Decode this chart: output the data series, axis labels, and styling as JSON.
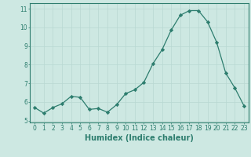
{
  "x": [
    0,
    1,
    2,
    3,
    4,
    5,
    6,
    7,
    8,
    9,
    10,
    11,
    12,
    13,
    14,
    15,
    16,
    17,
    18,
    19,
    20,
    21,
    22,
    23
  ],
  "y": [
    5.7,
    5.4,
    5.7,
    5.9,
    6.3,
    6.25,
    5.6,
    5.65,
    5.45,
    5.85,
    6.45,
    6.65,
    7.05,
    8.05,
    8.8,
    9.85,
    10.65,
    10.9,
    10.9,
    10.3,
    9.2,
    7.55,
    6.75,
    5.8
  ],
  "xlabel": "Humidex (Indice chaleur)",
  "xlim": [
    -0.5,
    23.5
  ],
  "ylim": [
    4.9,
    11.3
  ],
  "yticks": [
    5,
    6,
    7,
    8,
    9,
    10,
    11
  ],
  "xticks": [
    0,
    1,
    2,
    3,
    4,
    5,
    6,
    7,
    8,
    9,
    10,
    11,
    12,
    13,
    14,
    15,
    16,
    17,
    18,
    19,
    20,
    21,
    22,
    23
  ],
  "line_color": "#2d7d6e",
  "marker": "D",
  "marker_size": 2.2,
  "bg_color": "#cde8e2",
  "grid_color": "#b8d8d2",
  "tick_fontsize": 5.5,
  "xlabel_fontsize": 7
}
